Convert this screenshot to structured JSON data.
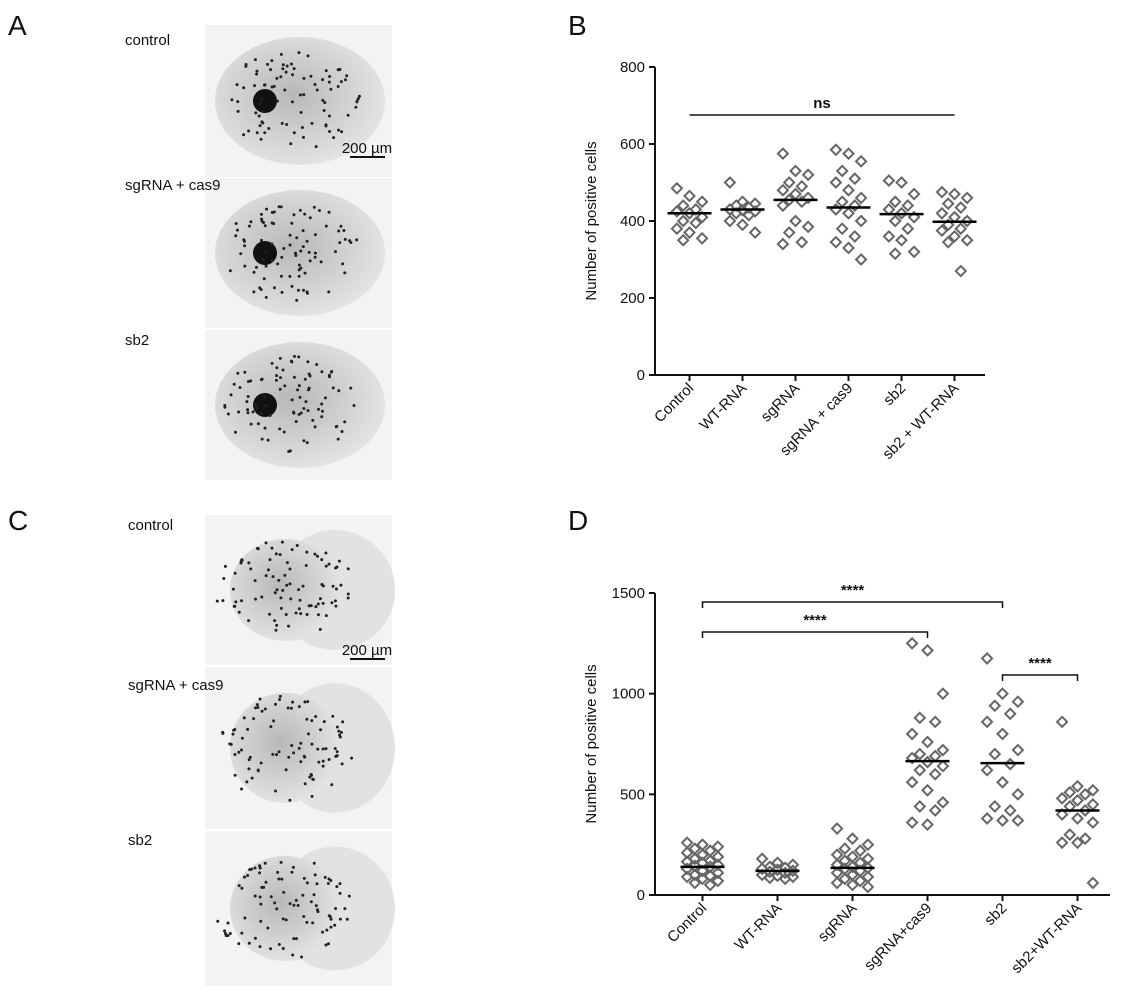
{
  "panels": [
    "A",
    "B",
    "C",
    "D"
  ],
  "images": [
    {
      "label": "control",
      "scale": "200 µm"
    },
    {
      "label": "sgRNA + cas9"
    },
    {
      "label": "sb2"
    },
    {
      "label": "control",
      "scale": "200 µm"
    },
    {
      "label": "sgRNA + cas9"
    },
    {
      "label": "sb2"
    }
  ],
  "chart_data": [
    {
      "type": "scatter",
      "y_label": "Number of positive cells",
      "categories": [
        "Control",
        "WT-RNA",
        "sgRNA",
        "sgRNA + cas9",
        "sb2",
        "sb2 + WT-RNA"
      ],
      "series": [
        {
          "name": "Control",
          "values": [
            485,
            465,
            450,
            440,
            430,
            425,
            420,
            410,
            400,
            395,
            380,
            370,
            355,
            350
          ]
        },
        {
          "name": "WT-RNA",
          "values": [
            500,
            450,
            445,
            440,
            435,
            430,
            428,
            425,
            420,
            415,
            400,
            390,
            370
          ]
        },
        {
          "name": "sgRNA",
          "values": [
            575,
            530,
            520,
            500,
            490,
            480,
            470,
            460,
            455,
            450,
            440,
            400,
            385,
            370,
            345,
            340
          ]
        },
        {
          "name": "sgRNA + cas9",
          "values": [
            585,
            575,
            555,
            530,
            510,
            500,
            480,
            460,
            450,
            440,
            430,
            420,
            400,
            380,
            360,
            345,
            330,
            300
          ]
        },
        {
          "name": "sb2",
          "values": [
            505,
            500,
            470,
            450,
            440,
            430,
            420,
            410,
            400,
            380,
            360,
            350,
            320,
            315
          ]
        },
        {
          "name": "sb2 + WT-RNA",
          "values": [
            475,
            470,
            460,
            445,
            435,
            420,
            410,
            400,
            390,
            380,
            375,
            360,
            350,
            345,
            270
          ]
        }
      ],
      "means": [
        420,
        430,
        455,
        435,
        418,
        398
      ],
      "color": "#666666",
      "ylim": [
        0,
        800
      ],
      "yticks": [
        0,
        200,
        400,
        600,
        800
      ],
      "annotations": [
        {
          "text": "ns",
          "from": "Control",
          "to": "sb2 + WT-RNA"
        }
      ]
    },
    {
      "type": "scatter",
      "y_label": "Number of positive cells",
      "categories": [
        "Control",
        "WT-RNA",
        "sgRNA",
        "sgRNA+cas9",
        "sb2",
        "sb2+WT-RNA"
      ],
      "series": [
        {
          "name": "Control",
          "values": [
            260,
            250,
            240,
            230,
            220,
            210,
            200,
            190,
            180,
            170,
            165,
            160,
            150,
            145,
            140,
            130,
            120,
            110,
            100,
            95,
            90,
            80,
            70,
            60,
            50
          ]
        },
        {
          "name": "WT-RNA",
          "values": [
            180,
            160,
            150,
            140,
            135,
            130,
            125,
            120,
            115,
            110,
            100,
            95,
            90,
            85,
            80
          ]
        },
        {
          "name": "sgRNA",
          "values": [
            330,
            280,
            250,
            230,
            220,
            200,
            190,
            180,
            170,
            160,
            150,
            140,
            135,
            130,
            120,
            110,
            100,
            90,
            80,
            70,
            60,
            50,
            40
          ]
        },
        {
          "name": "sgRNA+cas9",
          "values": [
            1250,
            1215,
            1000,
            880,
            860,
            800,
            760,
            720,
            700,
            690,
            680,
            660,
            640,
            620,
            600,
            560,
            520,
            460,
            440,
            420,
            360,
            350
          ]
        },
        {
          "name": "sb2",
          "values": [
            1175,
            1000,
            960,
            940,
            900,
            860,
            800,
            720,
            700,
            650,
            620,
            560,
            500,
            440,
            420,
            380,
            370,
            370
          ]
        },
        {
          "name": "sb2+WT-RNA",
          "values": [
            860,
            540,
            520,
            510,
            500,
            480,
            470,
            450,
            440,
            420,
            400,
            380,
            360,
            300,
            280,
            260,
            260,
            60
          ]
        }
      ],
      "means": [
        140,
        120,
        135,
        665,
        655,
        420
      ],
      "color": "#666666",
      "ylim": [
        0,
        1500
      ],
      "yticks": [
        0,
        500,
        1000,
        1500
      ],
      "annotations": [
        {
          "text": "****",
          "from": "Control",
          "to": "sb2"
        },
        {
          "text": "****",
          "from": "Control",
          "to": "sgRNA+cas9"
        },
        {
          "text": "****",
          "from": "sb2",
          "to": "sb2+WT-RNA"
        }
      ]
    }
  ]
}
